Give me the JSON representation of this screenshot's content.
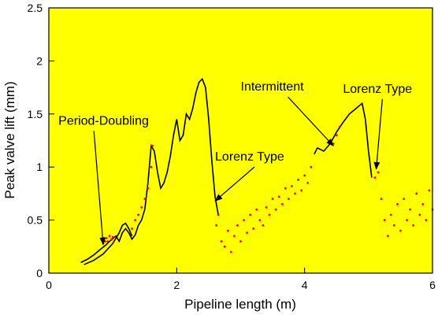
{
  "chart_data": {
    "type": "scatter",
    "title": "",
    "xlabel": "Pipeline length (m)",
    "ylabel": "Peak valve lift (mm)",
    "xlim": [
      0,
      6
    ],
    "ylim": [
      0,
      2.5
    ],
    "x_ticks": [
      0,
      2,
      4,
      6
    ],
    "y_ticks": [
      0,
      0.5,
      1,
      1.5,
      2,
      2.5
    ],
    "grid": false,
    "background_color": "#ffff00",
    "series": [
      {
        "kind": "curve",
        "color": "#000000",
        "points": [
          [
            0.5,
            0.1
          ],
          [
            0.6,
            0.13
          ],
          [
            0.7,
            0.17
          ],
          [
            0.8,
            0.22
          ],
          [
            0.9,
            0.27
          ],
          [
            0.95,
            0.3
          ],
          [
            1.05,
            0.35
          ],
          [
            1.1,
            0.3
          ],
          [
            1.15,
            0.38
          ],
          [
            1.2,
            0.42
          ],
          [
            1.25,
            0.38
          ],
          [
            1.3,
            0.32
          ],
          [
            1.35,
            0.36
          ],
          [
            1.4,
            0.45
          ],
          [
            1.45,
            0.5
          ],
          [
            1.5,
            0.6
          ],
          [
            1.55,
            0.85
          ],
          [
            1.6,
            1.2
          ],
          [
            1.65,
            1.15
          ],
          [
            1.7,
            0.95
          ],
          [
            1.75,
            0.8
          ],
          [
            1.8,
            0.85
          ],
          [
            1.85,
            0.95
          ],
          [
            1.9,
            1.1
          ],
          [
            1.95,
            1.3
          ],
          [
            2.0,
            1.45
          ],
          [
            2.05,
            1.25
          ],
          [
            2.1,
            1.3
          ],
          [
            2.15,
            1.5
          ],
          [
            2.2,
            1.45
          ],
          [
            2.25,
            1.55
          ],
          [
            2.3,
            1.7
          ],
          [
            2.35,
            1.8
          ],
          [
            2.4,
            1.83
          ],
          [
            2.45,
            1.75
          ],
          [
            2.5,
            1.45
          ],
          [
            2.55,
            1.05
          ],
          [
            2.6,
            0.72
          ],
          [
            2.65,
            0.55
          ]
        ]
      },
      {
        "kind": "curve",
        "color": "#000000",
        "points": [
          [
            0.55,
            0.08
          ],
          [
            0.7,
            0.12
          ],
          [
            0.85,
            0.18
          ],
          [
            1.0,
            0.28
          ],
          [
            1.1,
            0.38
          ],
          [
            1.15,
            0.45
          ],
          [
            1.2,
            0.47
          ],
          [
            1.25,
            0.42
          ],
          [
            1.3,
            0.35
          ]
        ]
      },
      {
        "kind": "curve",
        "color": "#000000",
        "points": [
          [
            4.15,
            1.12
          ],
          [
            4.2,
            1.18
          ],
          [
            4.3,
            1.15
          ],
          [
            4.4,
            1.22
          ],
          [
            4.5,
            1.33
          ],
          [
            4.6,
            1.42
          ],
          [
            4.7,
            1.5
          ],
          [
            4.8,
            1.55
          ],
          [
            4.9,
            1.6
          ],
          [
            4.95,
            1.45
          ],
          [
            5.0,
            1.15
          ],
          [
            5.05,
            0.9
          ]
        ]
      },
      {
        "kind": "scatter",
        "color": "#ff0000",
        "points": [
          [
            0.85,
            0.28
          ],
          [
            0.88,
            0.3
          ],
          [
            0.9,
            0.33
          ],
          [
            0.92,
            0.3
          ],
          [
            0.95,
            0.35
          ],
          [
            0.98,
            0.32
          ],
          [
            1.0,
            0.34
          ],
          [
            1.3,
            0.42
          ],
          [
            1.35,
            0.5
          ],
          [
            1.4,
            0.55
          ],
          [
            1.45,
            0.62
          ],
          [
            1.5,
            0.7
          ],
          [
            1.55,
            0.8
          ],
          [
            1.6,
            1.0
          ],
          [
            1.62,
            1.2
          ],
          [
            2.62,
            0.45
          ],
          [
            2.65,
            0.55
          ],
          [
            2.7,
            0.3
          ],
          [
            2.75,
            0.25
          ],
          [
            2.8,
            0.4
          ],
          [
            2.85,
            0.2
          ],
          [
            2.9,
            0.35
          ],
          [
            2.95,
            0.45
          ],
          [
            3.0,
            0.3
          ],
          [
            3.05,
            0.5
          ],
          [
            3.1,
            0.38
          ],
          [
            3.15,
            0.55
          ],
          [
            3.2,
            0.42
          ],
          [
            3.25,
            0.6
          ],
          [
            3.3,
            0.5
          ],
          [
            3.35,
            0.45
          ],
          [
            3.4,
            0.62
          ],
          [
            3.45,
            0.55
          ],
          [
            3.5,
            0.7
          ],
          [
            3.55,
            0.6
          ],
          [
            3.6,
            0.72
          ],
          [
            3.65,
            0.65
          ],
          [
            3.7,
            0.8
          ],
          [
            3.75,
            0.7
          ],
          [
            3.8,
            0.82
          ],
          [
            3.85,
            0.75
          ],
          [
            3.9,
            0.88
          ],
          [
            3.95,
            0.78
          ],
          [
            4.0,
            0.92
          ],
          [
            4.05,
            0.85
          ],
          [
            4.1,
            1.0
          ],
          [
            4.45,
            1.22
          ],
          [
            4.5,
            1.3
          ],
          [
            4.55,
            1.38
          ],
          [
            5.1,
            0.9
          ],
          [
            5.15,
            0.95
          ],
          [
            5.2,
            0.7
          ],
          [
            5.25,
            0.5
          ],
          [
            5.3,
            0.35
          ],
          [
            5.35,
            0.55
          ],
          [
            5.4,
            0.45
          ],
          [
            5.45,
            0.65
          ],
          [
            5.5,
            0.4
          ],
          [
            5.55,
            0.7
          ],
          [
            5.6,
            0.5
          ],
          [
            5.65,
            0.6
          ],
          [
            5.7,
            0.45
          ],
          [
            5.75,
            0.75
          ],
          [
            5.8,
            0.55
          ],
          [
            5.85,
            0.65
          ],
          [
            5.9,
            0.5
          ],
          [
            5.95,
            0.78
          ],
          [
            6.0,
            0.6
          ]
        ]
      }
    ],
    "annotations": [
      {
        "text": "Period-Doubling",
        "x": 0.15,
        "y": 1.4,
        "arrow_to": [
          0.85,
          0.27
        ]
      },
      {
        "text": "Lorenz Type",
        "x": 2.6,
        "y": 1.06,
        "arrow_to": [
          2.6,
          0.68
        ]
      },
      {
        "text": "Intermittent",
        "x": 3.0,
        "y": 1.72,
        "arrow_to": [
          4.45,
          1.2
        ]
      },
      {
        "text": "Lorenz Type",
        "x": 4.6,
        "y": 1.7,
        "arrow_to": [
          5.12,
          0.98
        ]
      }
    ]
  }
}
